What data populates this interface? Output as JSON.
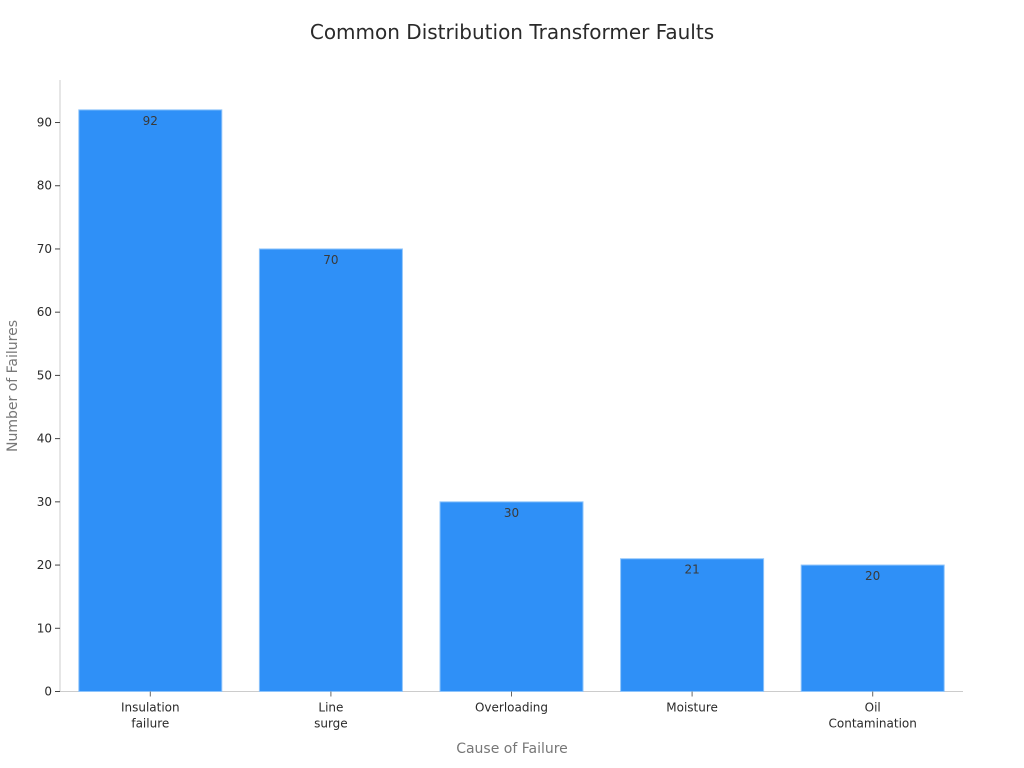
{
  "chart_data": {
    "type": "bar",
    "title": "Common Distribution Transformer Faults",
    "xlabel": "Cause of Failure",
    "ylabel": "Number of Failures",
    "categories": [
      "Insulation failure",
      "Line surge",
      "Overloading",
      "Moisture",
      "Oil Contamination"
    ],
    "category_lines": [
      [
        "Insulation",
        "failure"
      ],
      [
        "Line",
        "surge"
      ],
      [
        "Overloading"
      ],
      [
        "Moisture"
      ],
      [
        "Oil",
        "Contamination"
      ]
    ],
    "values": [
      92,
      70,
      30,
      21,
      20
    ],
    "data_labels": [
      "92",
      "70",
      "30",
      "21",
      "20"
    ],
    "yticks": [
      0,
      10,
      20,
      30,
      40,
      50,
      60,
      70,
      80,
      90
    ],
    "ylim": [
      0,
      97
    ],
    "grid": false,
    "legend": null,
    "bar_color": "#2f90f7"
  }
}
